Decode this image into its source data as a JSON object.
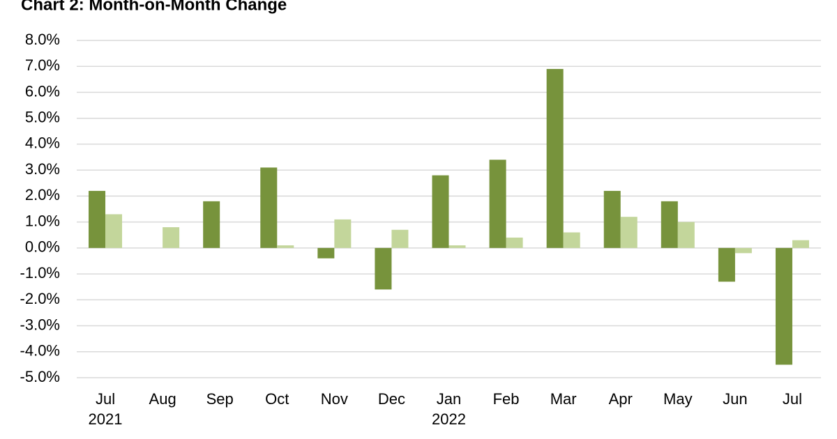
{
  "chart_data": {
    "type": "bar",
    "title": "Chart 2: Month-on-Month Change",
    "categories": [
      "Jul",
      "Aug",
      "Sep",
      "Oct",
      "Nov",
      "Dec",
      "Jan",
      "Feb",
      "Mar",
      "Apr",
      "May",
      "Jun",
      "Jul"
    ],
    "year_labels": [
      "2021",
      null,
      null,
      null,
      null,
      null,
      "2022",
      null,
      null,
      null,
      null,
      null,
      null
    ],
    "series": [
      {
        "color": "#77933c",
        "values": [
          2.2,
          null,
          1.8,
          3.1,
          -0.4,
          -1.6,
          2.8,
          3.4,
          6.9,
          2.2,
          1.8,
          -1.3,
          -4.5
        ]
      },
      {
        "color": "#c3d69b",
        "values": [
          1.3,
          0.8,
          null,
          0.1,
          1.1,
          0.7,
          0.1,
          0.4,
          0.6,
          1.2,
          1.0,
          -0.2,
          0.3
        ]
      }
    ],
    "ylim": [
      -5,
      8
    ],
    "yticks": [
      {
        "value": 8,
        "label": "8.0%"
      },
      {
        "value": 7,
        "label": "7.0%"
      },
      {
        "value": 6,
        "label": "6.0%"
      },
      {
        "value": 5,
        "label": "5.0%"
      },
      {
        "value": 4,
        "label": "4.0%"
      },
      {
        "value": 3,
        "label": "3.0%"
      },
      {
        "value": 2,
        "label": "2.0%"
      },
      {
        "value": 1,
        "label": "1.0%"
      },
      {
        "value": 0,
        "label": "0.0%"
      },
      {
        "value": -1,
        "label": "-1.0%"
      },
      {
        "value": -2,
        "label": "-2.0%"
      },
      {
        "value": -3,
        "label": "-3.0%"
      },
      {
        "value": -4,
        "label": "-4.0%"
      },
      {
        "value": -5,
        "label": "-5.0%"
      }
    ],
    "grid": true
  }
}
